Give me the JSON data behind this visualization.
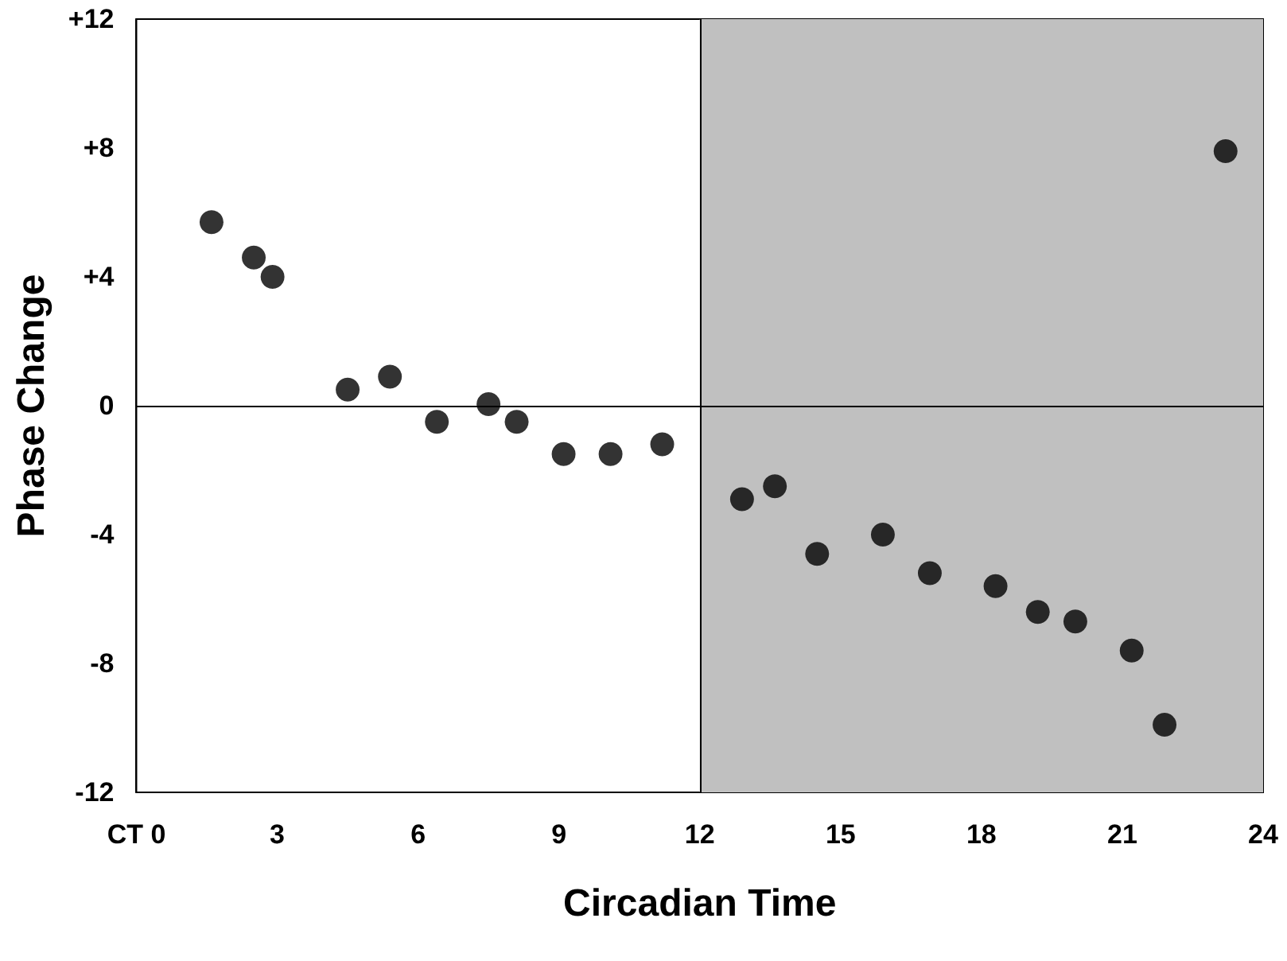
{
  "chart_data": {
    "type": "scatter",
    "xlabel": "Circadian Time",
    "ylabel": "Phase Change",
    "x": [
      1.6,
      2.5,
      2.9,
      4.5,
      5.4,
      6.4,
      7.5,
      8.1,
      9.1,
      10.1,
      11.2,
      12.9,
      13.6,
      14.5,
      15.9,
      16.9,
      18.3,
      19.2,
      20.0,
      21.2,
      21.9,
      23.2
    ],
    "values": [
      5.7,
      4.6,
      4.0,
      0.5,
      0.9,
      -0.5,
      0.05,
      -0.5,
      -1.5,
      -1.5,
      -1.2,
      -2.9,
      -2.5,
      -4.6,
      -4.0,
      -5.2,
      -5.6,
      -6.4,
      -6.7,
      -7.6,
      -9.9,
      7.9
    ],
    "color": "#000000",
    "marker": "circle",
    "xlim": [
      0,
      24
    ],
    "ylim": [
      -12,
      12
    ],
    "xticks": [
      {
        "value": 0,
        "label": "CT 0"
      },
      3,
      6,
      9,
      12,
      15,
      18,
      21,
      24
    ],
    "yticks": [
      -12,
      -8,
      -4,
      0,
      {
        "value": 4,
        "label": "+4"
      },
      {
        "value": 8,
        "label": "+8"
      },
      {
        "value": 12,
        "label": "+12"
      }
    ],
    "ref_lines": [
      {
        "axis": "y",
        "value": 0,
        "color": "#000000"
      },
      {
        "axis": "x",
        "value": 12,
        "color": "#000000"
      }
    ],
    "bands": [
      {
        "axis": "x",
        "from": 12,
        "to": 24,
        "color": "#c0c0c0"
      }
    ],
    "grid": false
  }
}
